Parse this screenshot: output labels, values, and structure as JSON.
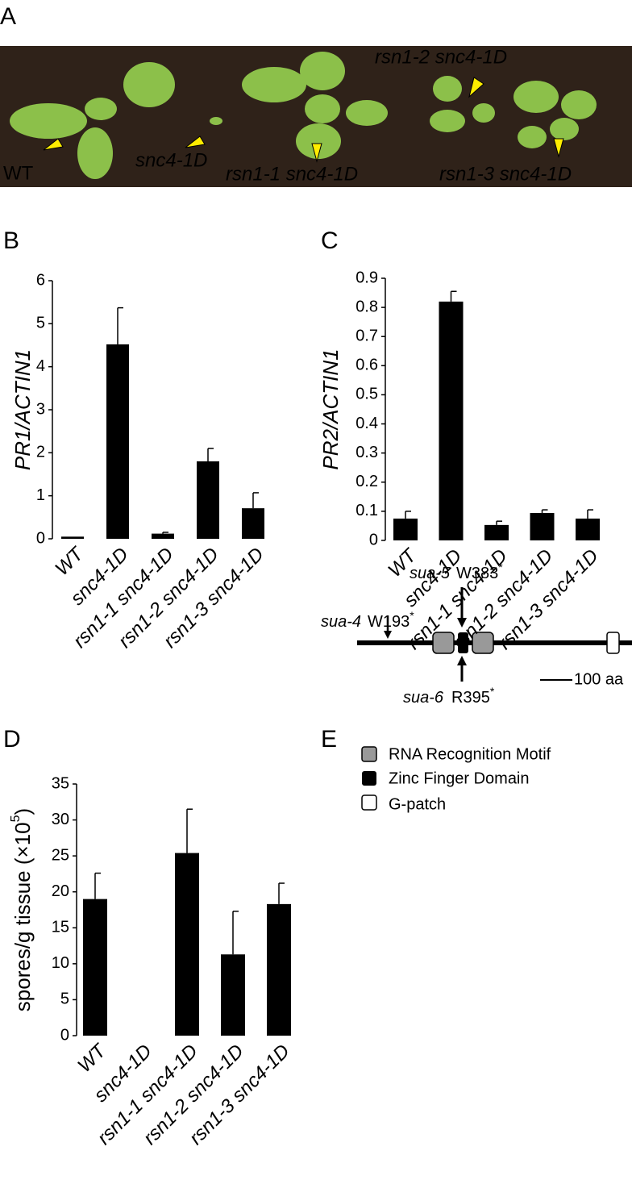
{
  "figure": {
    "panel_labels": [
      "A",
      "B",
      "C",
      "D",
      "E"
    ]
  },
  "photo": {
    "labels": [
      "WT",
      "snc4-1D",
      "rsn1-1 snc4-1D",
      "rsn1-2 snc4-1D",
      "rsn1-3 snc4-1D"
    ]
  },
  "chart_data": [
    {
      "type": "bar",
      "ylabel": [
        "PR1/ACTIN1"
      ],
      "color": "#000000",
      "categories": [
        "WT",
        "snc4-1D",
        "rsn1-1 snc4-1D",
        "rsn1-2 snc4-1D",
        "rsn1-3 snc4-1D"
      ],
      "values": [
        0.05,
        4.52,
        0.12,
        1.8,
        0.71
      ],
      "errors": [
        null,
        0.85,
        0.03,
        0.3,
        0.36
      ],
      "ylim": [
        0,
        6
      ],
      "yticks": [
        0,
        1,
        2,
        3,
        4,
        5,
        6
      ]
    },
    {
      "type": "bar",
      "ylabel": [
        "PR2/ACTIN1"
      ],
      "color": "#000000",
      "categories": [
        "WT",
        "snc4-1D",
        "rsn1-1 snc4-1D",
        "rsn1-2 snc4-1D",
        "rsn1-3 snc4-1D"
      ],
      "values": [
        0.075,
        0.82,
        0.053,
        0.094,
        0.075
      ],
      "errors": [
        0.025,
        0.035,
        0.013,
        0.011,
        0.03
      ],
      "ylim": [
        0,
        0.9
      ],
      "yticks": [
        0,
        0.1,
        0.2,
        0.3,
        0.4,
        0.5,
        0.6,
        0.7,
        0.8,
        0.9
      ]
    },
    {
      "type": "bar",
      "ylabel": [
        "spores/g tissue (×10",
        "5",
        ")"
      ],
      "color": "#000000",
      "categories": [
        "WT",
        "snc4-1D",
        "rsn1-1 snc4-1D",
        "rsn1-2 snc4-1D",
        "rsn1-3 snc4-1D"
      ],
      "values": [
        19,
        0,
        25.4,
        11.3,
        18.3
      ],
      "errors": [
        3.6,
        null,
        6.1,
        6.0,
        2.9
      ],
      "ylim": [
        0,
        35
      ],
      "yticks": [
        0,
        5,
        10,
        15,
        20,
        25,
        30,
        35
      ]
    }
  ],
  "diagram": {
    "mutations": [
      {
        "allele": "sua-4",
        "change": "W193",
        "mark": "*"
      },
      {
        "allele": "sua-5",
        "change": "W383",
        "mark": "*"
      },
      {
        "allele": "sua-6",
        "change": "R395",
        "mark": "*"
      }
    ],
    "scale": "100 aa",
    "legend": [
      "RNA Recognition Motif",
      "Zinc Finger Domain",
      "G-patch"
    ]
  }
}
